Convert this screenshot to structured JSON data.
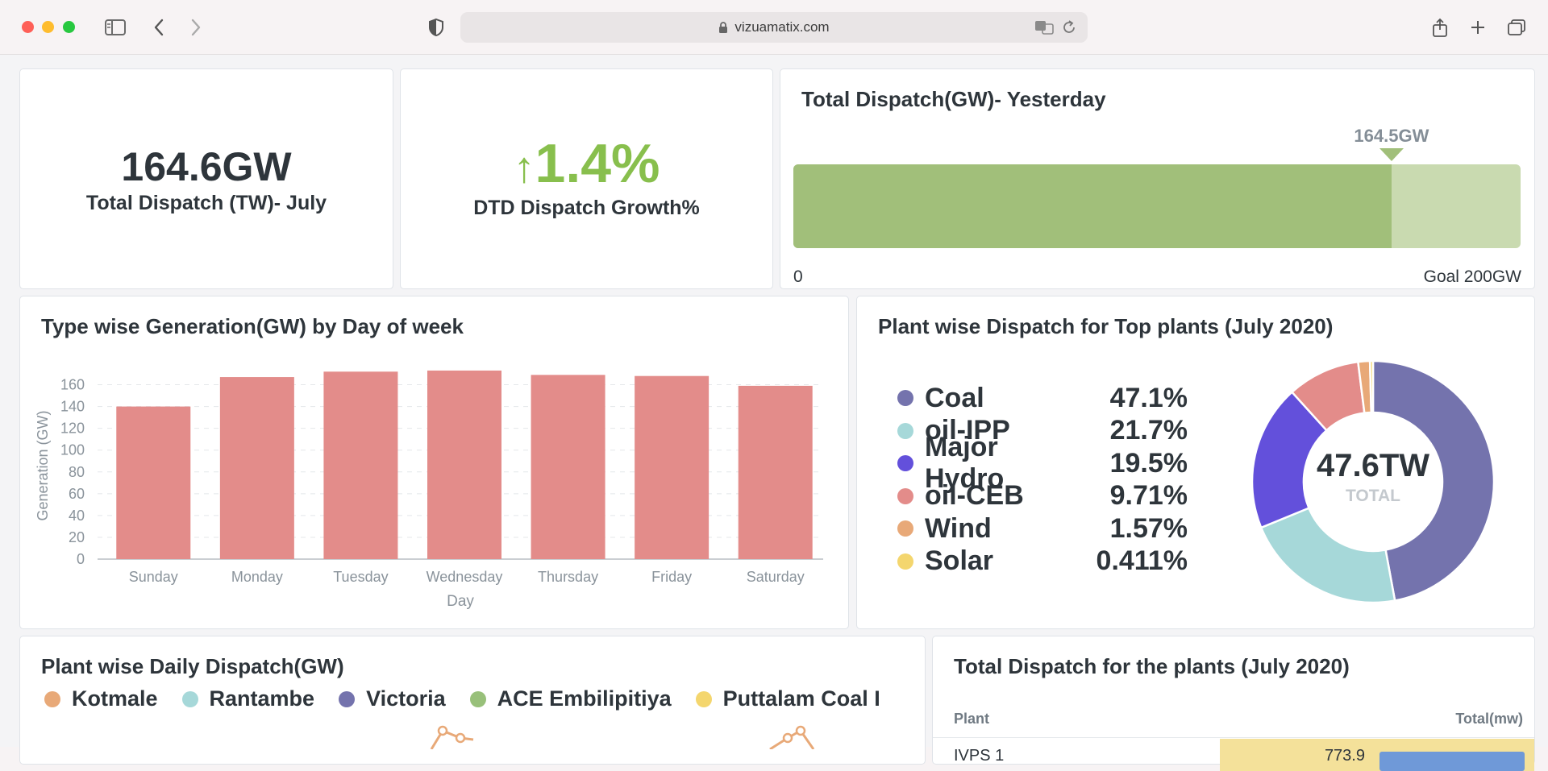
{
  "browser": {
    "url": "vizuamatix.com"
  },
  "kpi1": {
    "value": "164.6GW",
    "label": "Total Dispatch (TW)- July"
  },
  "kpi2": {
    "arrow": "↑",
    "value": "1.4%",
    "label": "DTD Dispatch Growth%"
  },
  "progress": {
    "title": "Total Dispatch(GW)- Yesterday",
    "marker_label": "164.5GW",
    "min_label": "0",
    "goal_label": "Goal 200GW",
    "value": 164.5,
    "goal": 200
  },
  "colors": {
    "bar": "#e38c8a",
    "progress_fill": "#a1bf7a",
    "progress_rest": "#c9dab0",
    "growth": "#88bf4d"
  },
  "bar_chart": {
    "title": "Type wise Generation(GW) by Day of week"
  },
  "pie": {
    "title": "Plant wise Dispatch for Top plants (July 2020)",
    "center_value": "47.6TW",
    "center_label": "TOTAL"
  },
  "chart_data": [
    {
      "type": "bar",
      "title": "Type wise Generation(GW) by Day of week",
      "xlabel": "Day",
      "ylabel": "Generation (GW)",
      "categories": [
        "Sunday",
        "Monday",
        "Tuesday",
        "Wednesday",
        "Thursday",
        "Friday",
        "Saturday"
      ],
      "values": [
        140,
        167,
        172,
        173,
        169,
        168,
        159
      ],
      "ylim": [
        0,
        170
      ],
      "yticks": [
        "0",
        "20",
        "40",
        "60",
        "80",
        "100",
        "120",
        "140",
        "160"
      ],
      "grid": true
    },
    {
      "type": "pie",
      "title": "Plant wise Dispatch for Top plants (July 2020)",
      "slices": [
        {
          "name": "Coal",
          "label": "47.1%",
          "value": 47.1,
          "color": "#7473ad"
        },
        {
          "name": "oil-IPP",
          "label": "21.7%",
          "value": 21.7,
          "color": "#a6d8d9"
        },
        {
          "name": "Major Hydro",
          "label": "19.5%",
          "value": 19.5,
          "color": "#6350db"
        },
        {
          "name": "oil-CEB",
          "label": "9.71%",
          "value": 9.71,
          "color": "#e38c8a"
        },
        {
          "name": "Wind",
          "label": "1.57%",
          "value": 1.57,
          "color": "#e8a978"
        },
        {
          "name": "Solar",
          "label": "0.411%",
          "value": 0.411,
          "color": "#f4d66e"
        }
      ]
    }
  ],
  "line_chart": {
    "title": "Plant wise Daily Dispatch(GW)",
    "series": [
      {
        "name": "Kotmale",
        "color": "#e8a978"
      },
      {
        "name": "Rantambe",
        "color": "#a6d8d9"
      },
      {
        "name": "Victoria",
        "color": "#7473ad"
      },
      {
        "name": "ACE Embilipitiya",
        "color": "#98c07a"
      },
      {
        "name": "Puttalam Coal I",
        "color": "#f4d66e"
      }
    ]
  },
  "table": {
    "title": "Total Dispatch for the plants (July 2020)",
    "col_plant": "Plant",
    "col_total": "Total(mw)",
    "row1_plant": "IVPS 1",
    "row1_total": "773.9"
  }
}
